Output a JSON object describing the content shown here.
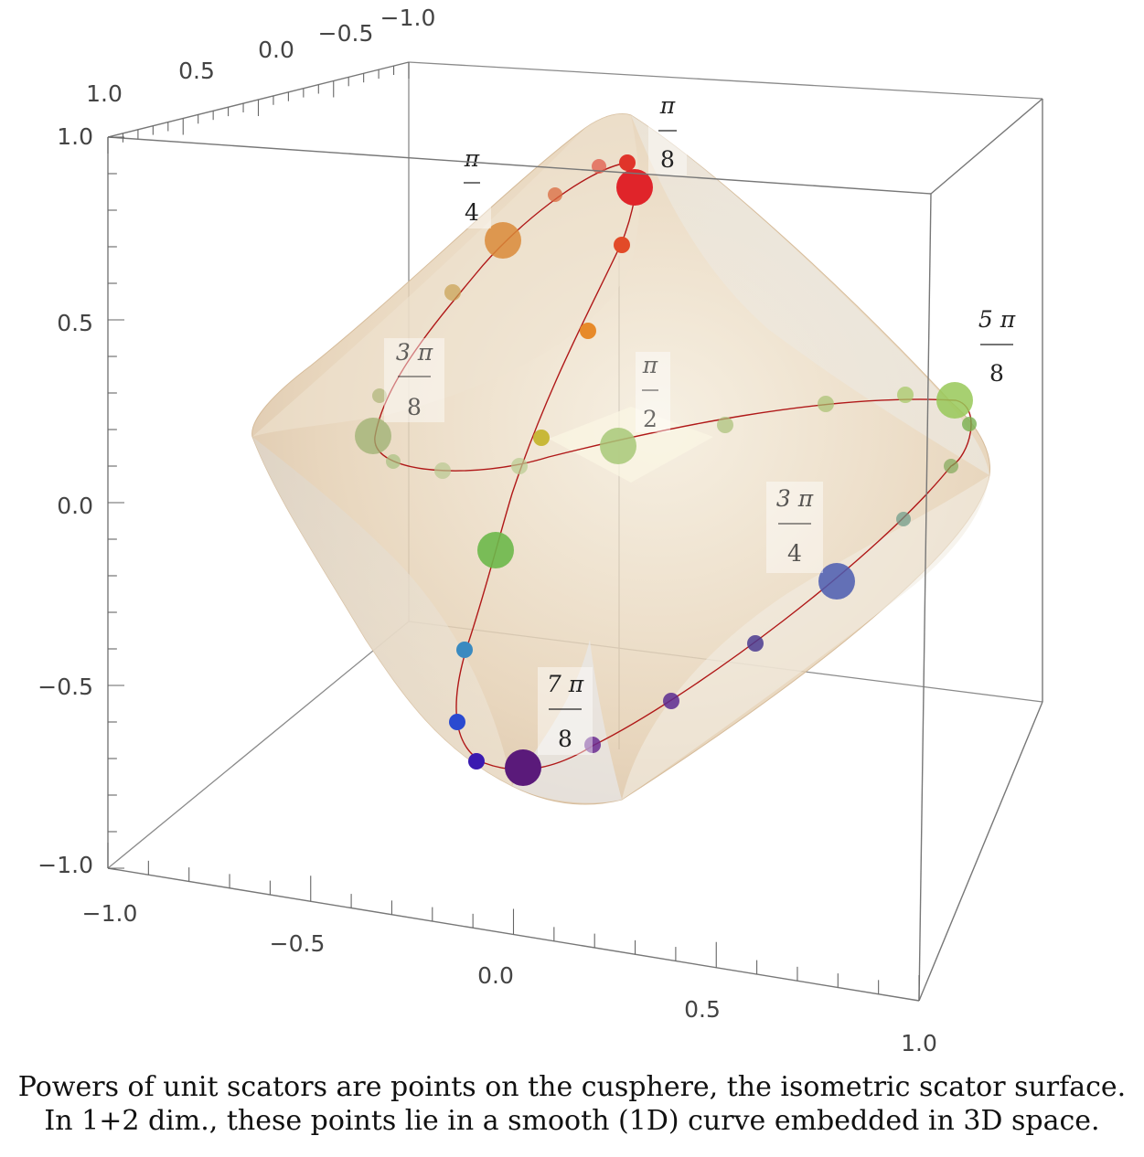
{
  "axis_ticks": {
    "top": [
      "1.0",
      "0.5",
      "0.0",
      "−0.5",
      "−1.0"
    ],
    "left": [
      "1.0",
      "0.5",
      "0.0",
      "−0.5",
      "−1.0"
    ],
    "bottom": [
      "−1.0",
      "−0.5",
      "0.0",
      "0.5",
      "1.0"
    ]
  },
  "angle_labels": [
    {
      "num": "π",
      "den": "8"
    },
    {
      "num": "π",
      "den": "4"
    },
    {
      "num": "3 π",
      "den": "8"
    },
    {
      "num": "π",
      "den": "2"
    },
    {
      "num": "5 π",
      "den": "8"
    },
    {
      "num": "3 π",
      "den": "4"
    },
    {
      "num": "7 π",
      "den": "8"
    }
  ],
  "caption": {
    "line1": "Powers of unit scators are points on the cusphere, the isometric scator surface.",
    "line2": "In 1+2 dim., these points lie in a smooth (1D) curve embedded in 3D space."
  },
  "colors": {
    "surface": "#e6d3b8",
    "curve": "#b01818",
    "box": "#8a8a8a"
  }
}
